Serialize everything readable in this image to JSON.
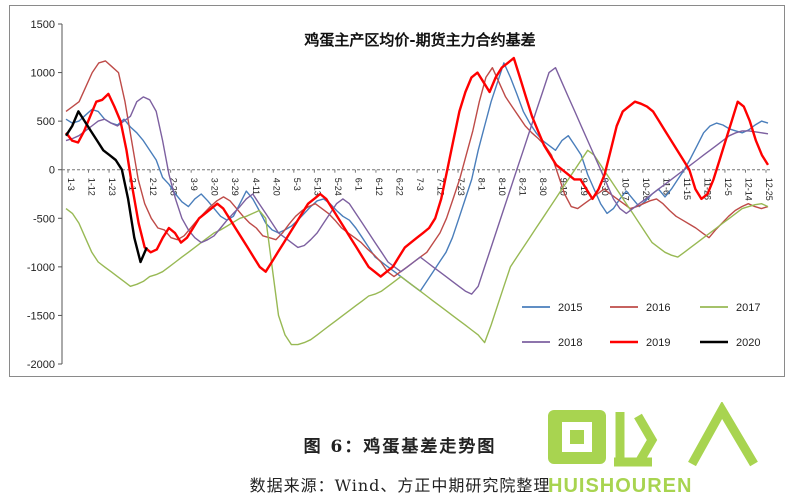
{
  "figure": {
    "caption": "图 6：鸡蛋基差走势图",
    "source": "数据来源：Wind、方正中期研究院整理"
  },
  "watermark": {
    "cn": "回收",
    "en": "HUISHOUREN",
    "color": "#9acd32"
  },
  "chart_data": {
    "type": "line",
    "title": "鸡蛋主产区均价-期货主力合约基差",
    "xlabel": "",
    "ylabel": "",
    "ylim": [
      -2000,
      1500
    ],
    "yticks": [
      1500,
      1000,
      500,
      0,
      -500,
      -1000,
      -1500,
      -2000
    ],
    "x_tick_labels": [
      "1-3",
      "1-12",
      "1-23",
      "2-1",
      "2-12",
      "2-28",
      "3-9",
      "3-20",
      "3-29",
      "4-11",
      "4-20",
      "5-3",
      "5-13",
      "5-24",
      "6-1",
      "6-12",
      "6-22",
      "7-3",
      "7-12",
      "7-23",
      "8-1",
      "8-10",
      "8-21",
      "8-30",
      "9-10",
      "9-19",
      "9-30",
      "10-17",
      "10-26",
      "11-6",
      "11-15",
      "11-26",
      "12-5",
      "12-14",
      "12-25"
    ],
    "grid": false,
    "legend_position": "bottom-right",
    "series": [
      {
        "name": "2015",
        "color": "#4a7ebb",
        "values": [
          520,
          480,
          500,
          560,
          620,
          600,
          520,
          480,
          460,
          520,
          440,
          380,
          300,
          200,
          100,
          -80,
          -150,
          -250,
          -330,
          -380,
          -300,
          -250,
          -320,
          -400,
          -480,
          -520,
          -480,
          -350,
          -220,
          -300,
          -420,
          -550,
          -620,
          -650,
          -620,
          -580,
          -520,
          -450,
          -380,
          -320,
          -300,
          -350,
          -420,
          -480,
          -520,
          -600,
          -700,
          -800,
          -900,
          -950,
          -1000,
          -1050,
          -1100,
          -1150,
          -1200,
          -1250,
          -1150,
          -1050,
          -950,
          -850,
          -700,
          -500,
          -300,
          -100,
          200,
          450,
          700,
          900,
          1100,
          950,
          780,
          600,
          480,
          380,
          300,
          250,
          200,
          300,
          350,
          250,
          150,
          -50,
          -200,
          -350,
          -450,
          -400,
          -300,
          -220,
          -300,
          -380,
          -320,
          -250,
          -200,
          -280,
          -200,
          -100,
          0,
          120,
          250,
          380,
          450,
          480,
          460,
          420,
          400,
          380,
          410,
          460,
          500,
          480
        ]
      },
      {
        "name": "2016",
        "color": "#be4b48",
        "values": [
          600,
          650,
          700,
          850,
          1000,
          1100,
          1120,
          1060,
          1000,
          700,
          300,
          -100,
          -350,
          -500,
          -600,
          -620,
          -700,
          -720,
          -680,
          -600,
          -520,
          -450,
          -380,
          -320,
          -280,
          -320,
          -400,
          -480,
          -550,
          -600,
          -680,
          -700,
          -720,
          -650,
          -560,
          -480,
          -420,
          -380,
          -350,
          -400,
          -450,
          -520,
          -600,
          -650,
          -700,
          -750,
          -820,
          -880,
          -950,
          -1050,
          -1100,
          -1050,
          -1000,
          -950,
          -900,
          -850,
          -750,
          -650,
          -500,
          -300,
          -100,
          150,
          400,
          700,
          950,
          1050,
          900,
          750,
          650,
          550,
          450,
          380,
          320,
          250,
          150,
          -50,
          -250,
          -380,
          -400,
          -350,
          -300,
          -250,
          -200,
          -250,
          -300,
          -350,
          -400,
          -380,
          -350,
          -320,
          -300,
          -350,
          -420,
          -480,
          -520,
          -560,
          -600,
          -650,
          -700,
          -620,
          -550,
          -480,
          -420,
          -380,
          -350,
          -380,
          -400,
          -380
        ]
      },
      {
        "name": "2017",
        "color": "#98b954",
        "values": [
          -400,
          -450,
          -550,
          -700,
          -850,
          -950,
          -1000,
          -1050,
          -1100,
          -1150,
          -1200,
          -1180,
          -1150,
          -1100,
          -1080,
          -1050,
          -1000,
          -950,
          -900,
          -850,
          -800,
          -750,
          -700,
          -650,
          -620,
          -580,
          -540,
          -500,
          -480,
          -450,
          -420,
          -500,
          -1000,
          -1500,
          -1700,
          -1800,
          -1800,
          -1780,
          -1750,
          -1700,
          -1650,
          -1600,
          -1550,
          -1500,
          -1450,
          -1400,
          -1350,
          -1300,
          -1280,
          -1250,
          -1200,
          -1150,
          -1100,
          -1150,
          -1200,
          -1250,
          -1300,
          -1350,
          -1400,
          -1450,
          -1500,
          -1550,
          -1600,
          -1650,
          -1700,
          -1780,
          -1600,
          -1400,
          -1200,
          -1000,
          -900,
          -800,
          -700,
          -600,
          -500,
          -400,
          -300,
          -200,
          -100,
          0,
          100,
          200,
          150,
          50,
          -50,
          -150,
          -250,
          -350,
          -450,
          -550,
          -650,
          -750,
          -800,
          -850,
          -880,
          -900,
          -850,
          -800,
          -750,
          -700,
          -650,
          -600,
          -550,
          -500,
          -450,
          -400,
          -380,
          -360,
          -350,
          -380
        ]
      },
      {
        "name": "2018",
        "color": "#7d60a0",
        "values": [
          300,
          320,
          350,
          400,
          450,
          500,
          520,
          480,
          450,
          500,
          550,
          700,
          750,
          720,
          600,
          300,
          -50,
          -300,
          -500,
          -620,
          -700,
          -750,
          -720,
          -680,
          -600,
          -520,
          -450,
          -380,
          -300,
          -250,
          -350,
          -450,
          -550,
          -650,
          -700,
          -750,
          -800,
          -780,
          -720,
          -650,
          -550,
          -450,
          -350,
          -300,
          -350,
          -450,
          -550,
          -650,
          -750,
          -850,
          -950,
          -1000,
          -1050,
          -1000,
          -950,
          -900,
          -950,
          -1000,
          -1050,
          -1100,
          -1150,
          -1200,
          -1250,
          -1280,
          -1200,
          -1000,
          -800,
          -600,
          -400,
          -200,
          0,
          200,
          400,
          600,
          800,
          1000,
          1050,
          900,
          750,
          600,
          450,
          300,
          150,
          0,
          -150,
          -300,
          -400,
          -450,
          -400,
          -350,
          -300,
          -250,
          -200,
          -150,
          -100,
          -50,
          0,
          50,
          100,
          150,
          200,
          250,
          300,
          350,
          380,
          400,
          400,
          390,
          380,
          370
        ]
      },
      {
        "name": "2019",
        "color": "#ff0000",
        "values": [
          380,
          300,
          280,
          400,
          550,
          700,
          720,
          780,
          650,
          500,
          200,
          -200,
          -550,
          -800,
          -850,
          -820,
          -700,
          -600,
          -650,
          -750,
          -700,
          -600,
          -500,
          -450,
          -400,
          -350,
          -400,
          -500,
          -600,
          -700,
          -800,
          -900,
          -1000,
          -1050,
          -950,
          -850,
          -750,
          -650,
          -550,
          -450,
          -350,
          -300,
          -250,
          -300,
          -400,
          -500,
          -600,
          -700,
          -800,
          -900,
          -1000,
          -1050,
          -1100,
          -1050,
          -1000,
          -900,
          -800,
          -750,
          -700,
          -650,
          -600,
          -500,
          -300,
          0,
          300,
          600,
          800,
          950,
          1000,
          900,
          800,
          950,
          1050,
          1100,
          1150,
          950,
          750,
          550,
          400,
          250,
          150,
          50,
          0,
          -50,
          -100,
          -100,
          -200,
          -300,
          -200,
          -50,
          200,
          450,
          600,
          650,
          700,
          680,
          650,
          600,
          500,
          400,
          300,
          200,
          100,
          0,
          -200,
          -300,
          -250,
          -100,
          100,
          300,
          500,
          700,
          650,
          500,
          300,
          150,
          50
        ]
      },
      {
        "name": "2020",
        "color": "#000000",
        "values": [
          350,
          450,
          600,
          500,
          400,
          300,
          200,
          150,
          100,
          0,
          -300,
          -700,
          -950,
          -800,
          null,
          null,
          null,
          null,
          null,
          null,
          null,
          null,
          null,
          null,
          null,
          null,
          null,
          null,
          null,
          null,
          null,
          null,
          null,
          null,
          null,
          null,
          null,
          null,
          null,
          null,
          null,
          null,
          null,
          null,
          null,
          null,
          null,
          null,
          null,
          null,
          null,
          null,
          null,
          null,
          null,
          null,
          null,
          null,
          null,
          null,
          null,
          null,
          null,
          null,
          null,
          null,
          null,
          null,
          null,
          null,
          null,
          null,
          null,
          null,
          null,
          null,
          null,
          null,
          null,
          null,
          null,
          null,
          null,
          null,
          null,
          null,
          null,
          null,
          null,
          null,
          null,
          null,
          null,
          null,
          null,
          null,
          null,
          null,
          null,
          null,
          null,
          null,
          null,
          null,
          null,
          null,
          null,
          null,
          null,
          null,
          null,
          null,
          null,
          null
        ]
      }
    ]
  }
}
